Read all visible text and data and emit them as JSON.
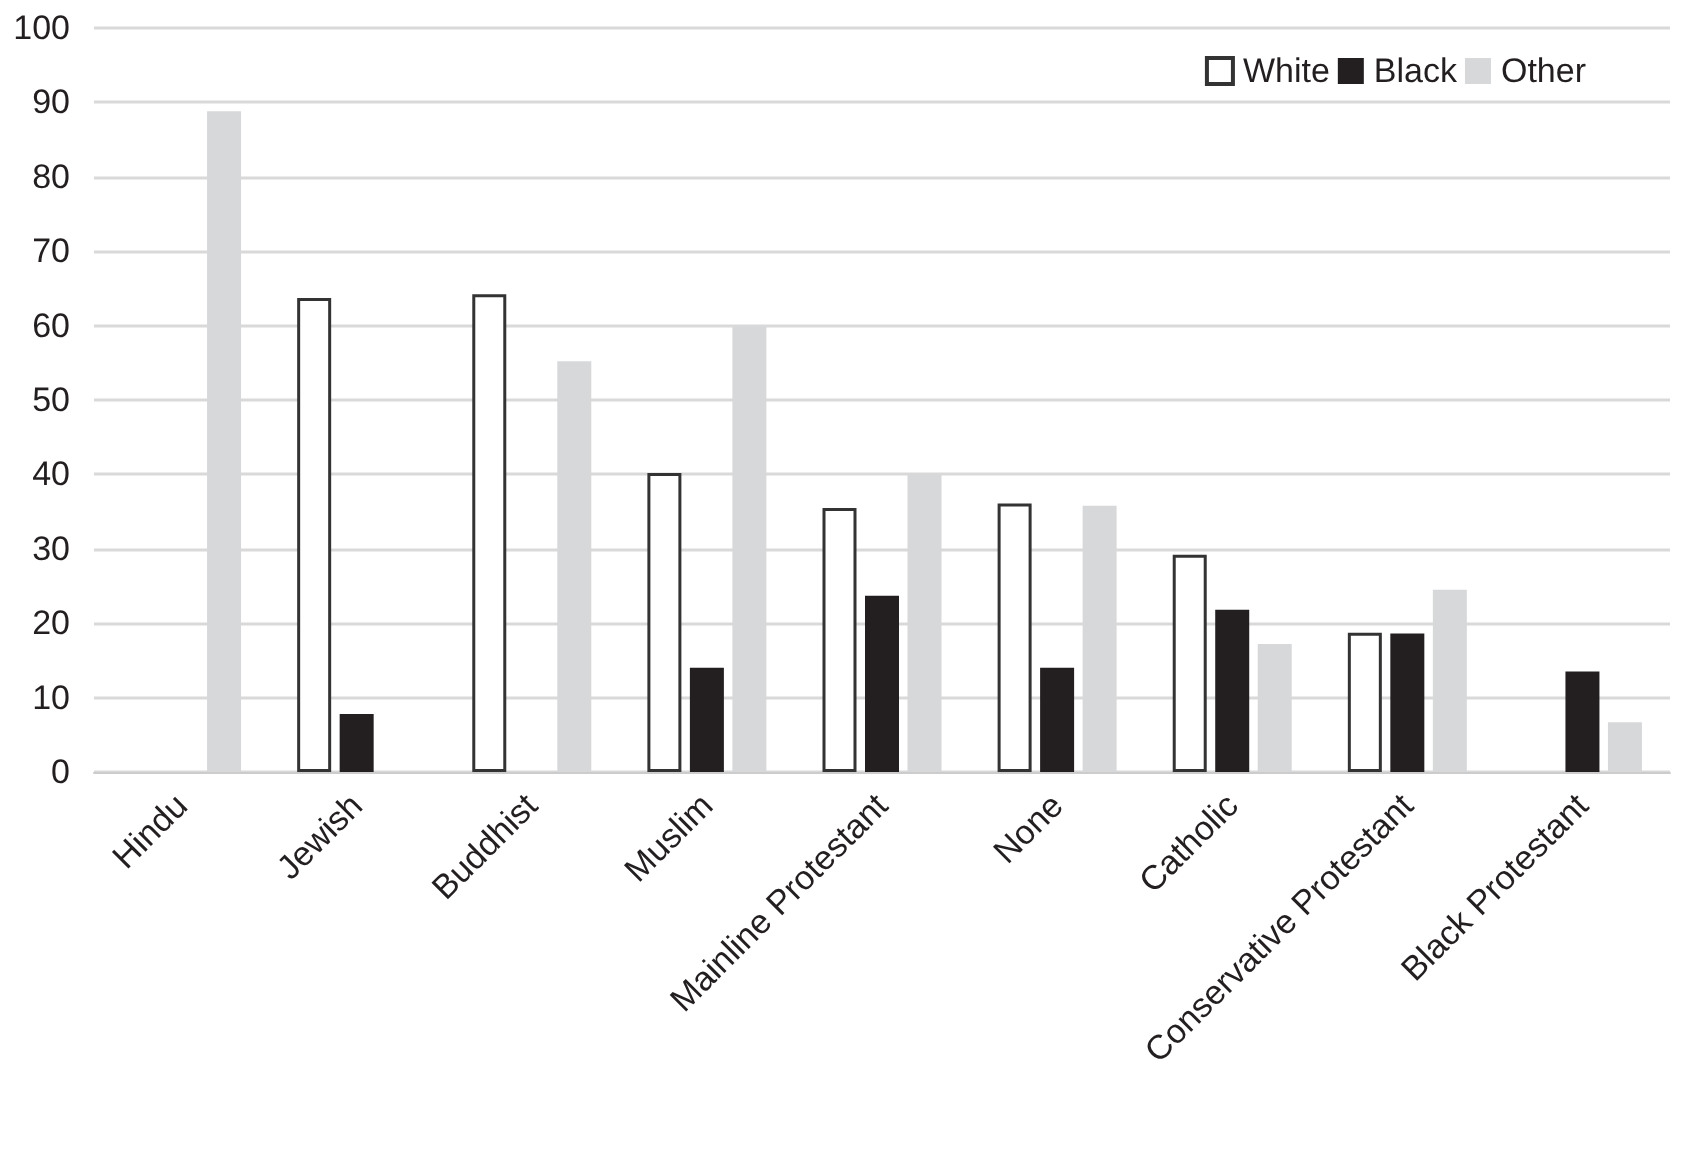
{
  "chart_data": {
    "type": "bar",
    "categories": [
      "Hindu",
      "Jewish",
      "Buddhist",
      "Muslim",
      "Mainline Protestant",
      "None",
      "Catholic",
      "Conservative Protestant",
      "Black Protestant"
    ],
    "series": [
      {
        "name": "White",
        "color": "#ffffff",
        "values": [
          null,
          63.7,
          64.2,
          40.2,
          35.5,
          36.1,
          29.2,
          18.7,
          null
        ]
      },
      {
        "name": "Black",
        "color": "#231f20",
        "values": [
          null,
          7.8,
          null,
          14,
          23.7,
          14,
          21.8,
          18.6,
          13.5
        ]
      },
      {
        "name": "Other",
        "color": "#d7d8da",
        "values": [
          88.8,
          null,
          55.2,
          59.9,
          40,
          35.8,
          17.2,
          24.5,
          6.7
        ]
      }
    ],
    "ylim": [
      0,
      100
    ],
    "yticks": [
      0,
      10,
      20,
      30,
      40,
      50,
      60,
      70,
      80,
      90,
      100
    ],
    "grid": "y",
    "legend": "top right"
  }
}
